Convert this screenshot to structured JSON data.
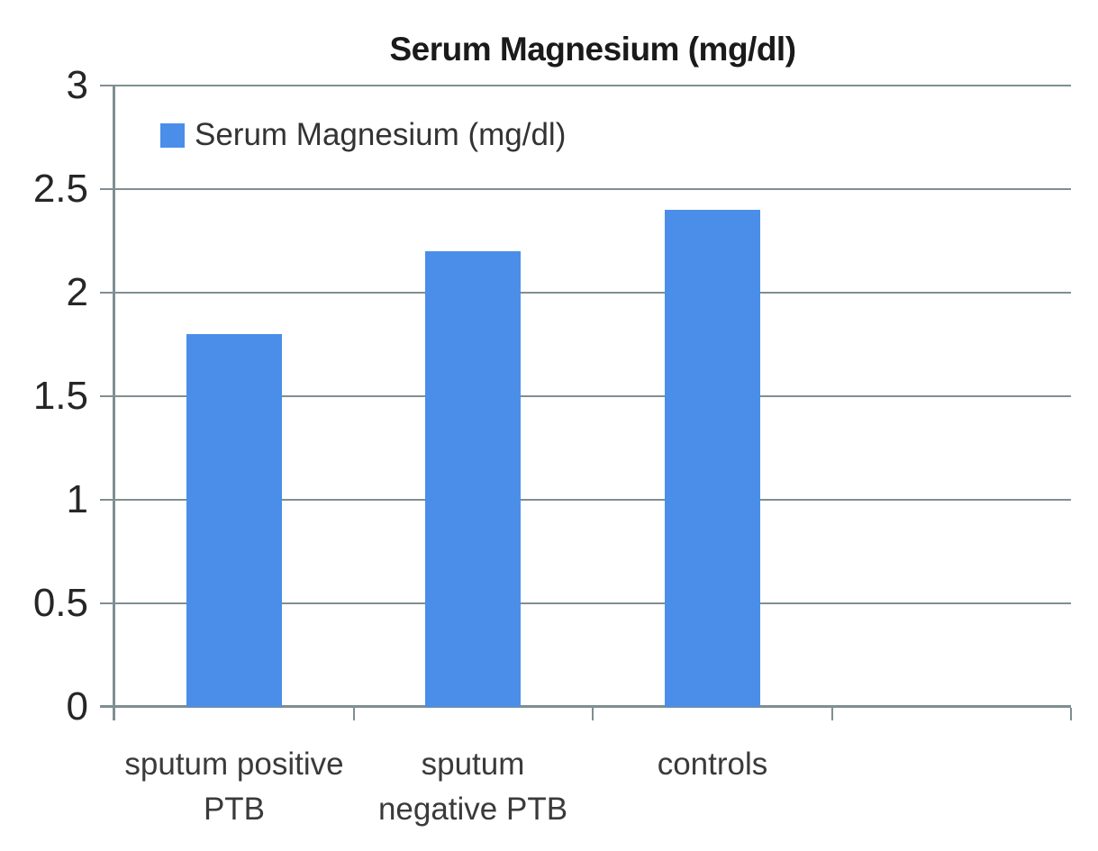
{
  "chart_data": {
    "type": "bar",
    "title": "Serum Magnesium (mg/dl)",
    "series_name": "Serum Magnesium (mg/dl)",
    "categories": [
      "sputum positive PTB",
      "sputum negative PTB",
      "controls"
    ],
    "values": [
      1.8,
      2.2,
      2.4
    ],
    "ylim": [
      0,
      3
    ],
    "yticks": [
      0,
      0.5,
      1,
      1.5,
      2,
      2.5,
      3
    ],
    "ytick_labels": [
      "0",
      "0.5",
      "1",
      "1.5",
      "2",
      "2.5",
      "3"
    ],
    "grid": true,
    "legend_position": "top-left-inside",
    "bar_color": "#4a8ee9",
    "gridline_color": "#7f8f92",
    "num_category_slots": 4
  }
}
